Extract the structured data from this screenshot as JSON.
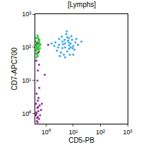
{
  "chart_data": {
    "type": "scatter",
    "title": "[Lymphs]",
    "x_label": "CD5-PB",
    "y_label": "CD7-APC700",
    "log": true,
    "grid": false,
    "marker": "dot",
    "xlim": [
      0.4,
      1000
    ],
    "ylim": [
      0.5,
      1000
    ],
    "xticks": [
      {
        "value": 1,
        "label": "10⁰"
      },
      {
        "value": 10,
        "label": "10¹"
      },
      {
        "value": 100,
        "label": "10²"
      },
      {
        "value": 1000,
        "label": "10³"
      }
    ],
    "yticks": [
      {
        "value": 1,
        "label": "10⁰"
      },
      {
        "value": 10,
        "label": "10¹"
      },
      {
        "value": 100,
        "label": "10²"
      },
      {
        "value": 1000,
        "label": "10³"
      }
    ],
    "series": [
      {
        "color": "#33a6f2",
        "x": [
          3,
          5,
          4,
          7,
          6,
          2.5,
          8,
          10,
          3.5,
          5.5,
          4.5,
          9,
          12,
          2,
          6.5,
          3,
          7.5,
          5,
          4,
          11,
          15,
          2.2,
          8.5,
          6,
          3.8,
          5,
          9.5,
          13,
          7,
          4.2,
          2.8,
          6.8,
          20,
          1.6,
          10,
          5.8,
          3.2,
          8,
          4.8,
          7
        ],
        "values": [
          120,
          100,
          150,
          90,
          200,
          80,
          130,
          110,
          70,
          250,
          60,
          170,
          140,
          110,
          160,
          180,
          60,
          130,
          95,
          85,
          120,
          140,
          220,
          75,
          210,
          50,
          95,
          180,
          115,
          125,
          100,
          140,
          150,
          130,
          60,
          300,
          55,
          100,
          170,
          190
        ]
      },
      {
        "color": "#2fc82f",
        "x": [
          0.45,
          0.5,
          0.42,
          0.55,
          0.48,
          0.52,
          0.44,
          0.58,
          0.47,
          0.5,
          0.43,
          0.56,
          0.49,
          0.46,
          0.6,
          0.45,
          0.53,
          0.42,
          0.51,
          0.57,
          0.44,
          0.5,
          0.48,
          0.54,
          0.46,
          0.62,
          0.43,
          0.5,
          0.47,
          0.55
        ],
        "values": [
          120,
          90,
          150,
          110,
          70,
          180,
          95,
          130,
          60,
          200,
          80,
          75,
          140,
          105,
          95,
          50,
          160,
          115,
          125,
          170,
          65,
          100,
          230,
          85,
          135,
          120,
          190,
          55,
          85,
          145
        ]
      },
      {
        "color": "#9b2a9b",
        "x": [
          0.45,
          0.5,
          0.48,
          0.55,
          0.43,
          0.52,
          0.6,
          0.46,
          0.5,
          0.44,
          0.58,
          0.47,
          0.53,
          0.42,
          0.65,
          0.49,
          0.51,
          0.45,
          0.56,
          0.48,
          0.5,
          0.44,
          0.52,
          0.47,
          0.55,
          0.7,
          1.2,
          0.9
        ],
        "values": [
          1,
          0.8,
          1.5,
          0.7,
          2,
          1.2,
          0.9,
          0.6,
          2.5,
          1.1,
          1.8,
          0.75,
          3,
          0.9,
          1.3,
          0.55,
          1.6,
          4,
          6,
          10,
          20,
          40,
          70,
          130,
          30,
          2,
          120,
          15
        ]
      }
    ]
  }
}
